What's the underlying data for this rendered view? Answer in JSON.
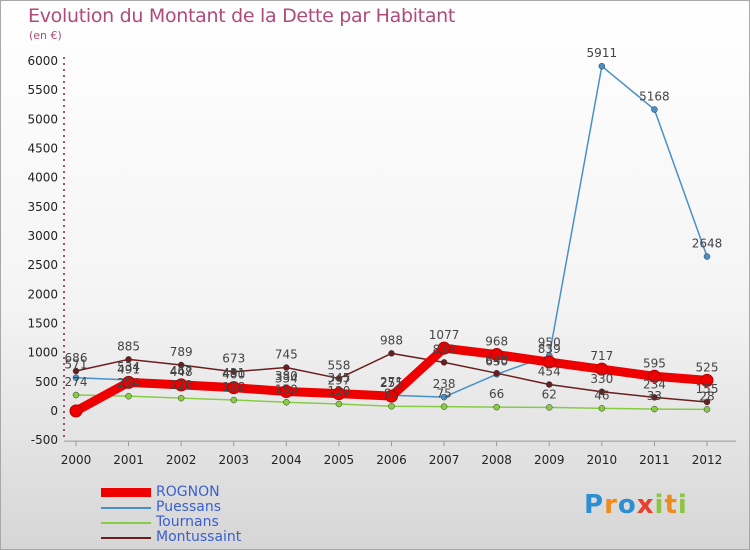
{
  "header": {
    "title": "Evolution du Montant de la Dette par Habitant",
    "subtitle": "(en €)"
  },
  "logo": {
    "text": "Proxiti",
    "letters": [
      "P",
      "r",
      "o",
      "x",
      "i",
      "t",
      "i"
    ],
    "colors": [
      "#2c8fd4",
      "#f08a1c",
      "#2c8fd4",
      "#e83f2f",
      "#8cc63f",
      "#f08a1c",
      "#8cc63f"
    ]
  },
  "chart_data": {
    "type": "line",
    "title": "Evolution du Montant de la Dette par Habitant",
    "ylabel": "(en €)",
    "xlabel": "",
    "ylim": [
      -500,
      6000
    ],
    "yticks": [
      -500,
      0,
      500,
      1000,
      1500,
      2000,
      2500,
      3000,
      3500,
      4000,
      4500,
      5000,
      5500,
      6000
    ],
    "categories": [
      "2000",
      "2001",
      "2002",
      "2003",
      "2004",
      "2005",
      "2006",
      "2007",
      "2008",
      "2009",
      "2010",
      "2011",
      "2012"
    ],
    "series": [
      {
        "name": "ROGNON",
        "color": "#ee0000",
        "width": 9,
        "marker": 6,
        "values": [
          0,
          491,
          448,
          400,
          334,
          297,
          255,
          1077,
          968,
          839,
          717,
          595,
          525
        ],
        "labels": [
          "",
          "491",
          "448",
          "400",
          "334",
          "297",
          "255",
          "1077",
          "968",
          "839",
          "717",
          "595",
          "525"
        ]
      },
      {
        "name": "Puessans",
        "color": "#4a90c8",
        "width": 1.5,
        "marker": 3,
        "values": [
          571,
          534,
          467,
          431,
          380,
          345,
          271,
          238,
          630,
          950,
          5911,
          5168,
          2648
        ],
        "labels": [
          "571",
          "534",
          "467",
          "431",
          "380",
          "345",
          "271",
          "238",
          "630",
          "950",
          "5911",
          "5168",
          "2648"
        ]
      },
      {
        "name": "Tournans",
        "color": "#88cc44",
        "width": 1.5,
        "marker": 3,
        "values": [
          274,
          254,
          220,
          188,
          150,
          120,
          81,
          75,
          66,
          62,
          46,
          33,
          28
        ],
        "labels": [
          "274",
          "254",
          "220",
          "188",
          "150",
          "120",
          "81",
          "75",
          "66",
          "62",
          "46",
          "33",
          "28"
        ]
      },
      {
        "name": "Montussaint",
        "color": "#6b1e1e",
        "width": 1.5,
        "marker": 3,
        "values": [
          686,
          885,
          789,
          673,
          745,
          558,
          988,
          833,
          648,
          454,
          330,
          234,
          155
        ],
        "labels": [
          "686",
          "885",
          "789",
          "673",
          "745",
          "558",
          "988",
          "833",
          "648",
          "454",
          "330",
          "234",
          "155"
        ]
      }
    ],
    "legend_position": "bottom-left",
    "grid": false
  }
}
